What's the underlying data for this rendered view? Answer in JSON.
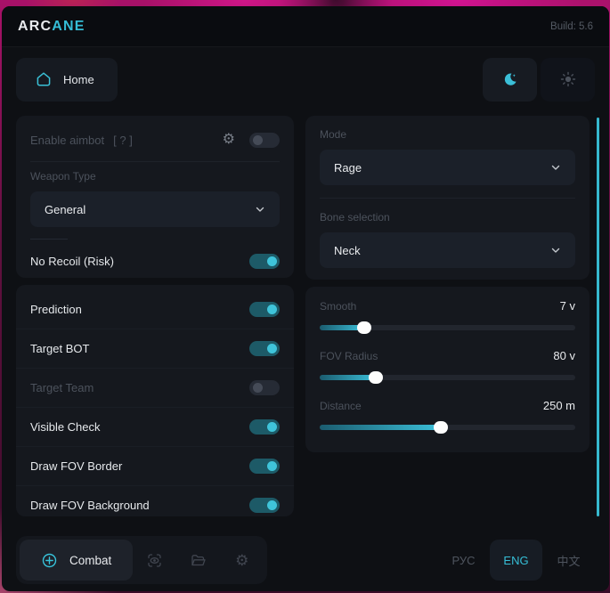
{
  "header": {
    "brand_prefix": "ARC",
    "brand_suffix": "ANE",
    "build": "Build: 5.6"
  },
  "nav": {
    "home_label": "Home"
  },
  "aimbot": {
    "enable_label": "Enable aimbot",
    "help_text": "[ ? ]",
    "weapon_type_label": "Weapon Type",
    "weapon_type_value": "General",
    "no_recoil_label": "No Recoil (Risk)"
  },
  "toggles": [
    {
      "label": "Prediction",
      "on": true,
      "disabled": false
    },
    {
      "label": "Target BOT",
      "on": true,
      "disabled": false
    },
    {
      "label": "Target Team",
      "on": false,
      "disabled": true
    },
    {
      "label": "Visible Check",
      "on": true,
      "disabled": false
    },
    {
      "label": "Draw FOV Border",
      "on": true,
      "disabled": false
    },
    {
      "label": "Draw FOV Background",
      "on": true,
      "disabled": false
    }
  ],
  "targeting": {
    "mode_label": "Mode",
    "mode_value": "Rage",
    "bone_label": "Bone selection",
    "bone_value": "Neck"
  },
  "sliders": [
    {
      "label": "Smooth",
      "value": "7 v",
      "percent": 17.5
    },
    {
      "label": "FOV Radius",
      "value": "80 v",
      "percent": 22
    },
    {
      "label": "Distance",
      "value": "250 m",
      "percent": 47.5
    }
  ],
  "footer": {
    "combat_label": "Combat",
    "languages": [
      {
        "label": "РУС",
        "active": false
      },
      {
        "label": "ENG",
        "active": true
      },
      {
        "label": "中文",
        "active": false
      }
    ]
  },
  "colors": {
    "accent": "#38bfd7",
    "toggle_on_track": "#1d5a67",
    "card": "#15181e",
    "scrollbar": "#36b9cf"
  }
}
